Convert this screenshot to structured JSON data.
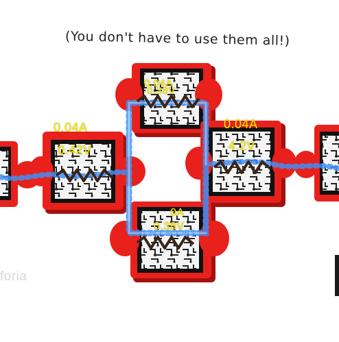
{
  "scene": {
    "handwritten_note": "(You don't have to use them all!)",
    "watermark": "foria",
    "colors": {
      "tile_red": "#e8211d",
      "tile_shadow": "#a3120f",
      "current_blue": "#3f8ff5",
      "resistor_zigzag": "#3a2418",
      "label_yellow": "#f2e600"
    },
    "components": [
      {
        "id": "resistor-left",
        "current": "0.04A",
        "voltage": "0.42V"
      },
      {
        "id": "resistor-top",
        "current": "0.04A",
        "voltage": "0.38V"
      },
      {
        "id": "resistor-right",
        "current": "0.04A",
        "voltage": "4.2V"
      },
      {
        "id": "resistor-bottom",
        "current": "0A",
        "voltage": "0.38V"
      }
    ]
  }
}
